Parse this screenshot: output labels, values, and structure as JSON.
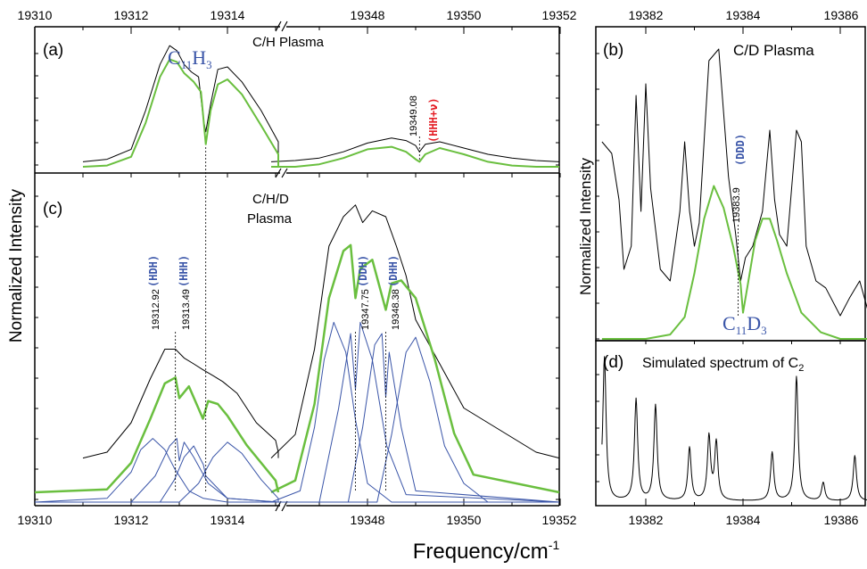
{
  "figure": {
    "xlabel": "Frequency/cm",
    "xlabel_sup": "-1",
    "ylabel_left": "Normalized Intensity",
    "ylabel_right": "Normalized Intensity"
  },
  "panels": {
    "a": {
      "tag": "(a)",
      "title": "C/H Plasma",
      "species": "C",
      "species_sub1": "11",
      "species_mid": "H",
      "species_sub2": "3",
      "line_value": "19349.08",
      "line_label": "(HHH+ν)"
    },
    "b": {
      "tag": "(b)",
      "title": "C/D Plasma",
      "species": "C",
      "species_sub1": "11",
      "species_mid": "D",
      "species_sub2": "3",
      "line_value": "19383.9",
      "line_label": "(DDD)"
    },
    "c": {
      "tag": "(c)",
      "title_line1": "C/H/D",
      "title_line2": "Plasma",
      "lines": [
        {
          "value": "19312.92",
          "label": "(HDH)"
        },
        {
          "value": "19313.49",
          "label": "(HHH)"
        },
        {
          "value": "19347.75",
          "label": "(DDH)"
        },
        {
          "value": "19348.38",
          "label": "(DHH)"
        }
      ]
    },
    "d": {
      "tag": "(d)",
      "title": "Simulated spectrum of C",
      "title_sub": "2"
    }
  },
  "axes": {
    "left_top_ticks_seg1": [
      "19310",
      "19312",
      "19314"
    ],
    "left_top_ticks_seg2": [
      "19348",
      "19350",
      "19352"
    ],
    "left_bottom_ticks_seg1": [
      "19310",
      "19312",
      "19314"
    ],
    "left_bottom_ticks_seg2": [
      "19348",
      "19350",
      "19352"
    ],
    "right_top_ticks": [
      "19382",
      "19384",
      "19386"
    ],
    "right_bottom_ticks": [
      "19382",
      "19384",
      "19386"
    ]
  },
  "chart_data": [
    {
      "panel": "(a)",
      "type": "line",
      "title": "C/H Plasma",
      "xlabel": "Frequency/cm-1",
      "ylabel": "Normalized Intensity",
      "xlim_segments": [
        [
          19310,
          19316
        ],
        [
          19346,
          19352
        ]
      ],
      "series": [
        {
          "name": "C/H Plasma experiment",
          "color": "#000000",
          "stroke_width": 1,
          "x": [
            19311.0,
            19311.5,
            19312.0,
            19312.3,
            19312.6,
            19312.8,
            19312.95,
            19313.1,
            19313.25,
            19313.4,
            19313.5,
            19313.55,
            19313.65,
            19313.8,
            19314.0,
            19314.3,
            19314.7,
            19315.1,
            19315.6,
            19316.0,
            19346.0,
            19346.5,
            19347.0,
            19347.5,
            19348.0,
            19348.5,
            19348.8,
            19349.0,
            19349.08,
            19349.2,
            19349.5,
            19350.0,
            19350.5,
            19351.0,
            19351.5,
            19352.0
          ],
          "y": [
            0.04,
            0.06,
            0.14,
            0.45,
            0.82,
            0.97,
            0.93,
            0.82,
            0.76,
            0.72,
            0.38,
            0.28,
            0.5,
            0.78,
            0.8,
            0.68,
            0.45,
            0.2,
            0.08,
            0.05,
            0.04,
            0.05,
            0.07,
            0.12,
            0.19,
            0.23,
            0.21,
            0.17,
            0.12,
            0.18,
            0.2,
            0.15,
            0.1,
            0.07,
            0.05,
            0.04
          ]
        },
        {
          "name": "C11H3 simulation",
          "color": "#6abf3f",
          "stroke_width": 2,
          "x": [
            19311.0,
            19311.5,
            19312.0,
            19312.3,
            19312.6,
            19312.8,
            19312.95,
            19313.1,
            19313.3,
            19313.45,
            19313.55,
            19313.65,
            19313.8,
            19314.0,
            19314.3,
            19314.7,
            19315.1,
            19315.6,
            19316.0,
            19346.0,
            19346.5,
            19347.0,
            19347.5,
            19348.0,
            19348.5,
            19348.8,
            19349.0,
            19349.08,
            19349.2,
            19349.5,
            19350.0,
            19350.5,
            19351.0,
            19351.5,
            19352.0
          ],
          "y": [
            0.0,
            0.01,
            0.08,
            0.35,
            0.72,
            0.86,
            0.84,
            0.75,
            0.68,
            0.6,
            0.18,
            0.45,
            0.66,
            0.7,
            0.58,
            0.33,
            0.1,
            0.02,
            0.0,
            0.0,
            0.0,
            0.02,
            0.07,
            0.14,
            0.16,
            0.12,
            0.06,
            0.04,
            0.1,
            0.15,
            0.1,
            0.04,
            0.01,
            0.0,
            0.0
          ]
        }
      ]
    },
    {
      "panel": "(b)",
      "type": "line",
      "title": "C/D Plasma",
      "xlabel": "Frequency/cm-1",
      "ylabel": "Normalized Intensity",
      "xlim": [
        19381.1,
        19386.6
      ],
      "series": [
        {
          "name": "C/D Plasma experiment",
          "color": "#000000",
          "stroke_width": 1,
          "x": [
            19381.1,
            19381.3,
            19381.45,
            19381.55,
            19381.7,
            19381.8,
            19381.9,
            19382.0,
            19382.1,
            19382.3,
            19382.5,
            19382.7,
            19382.8,
            19382.9,
            19383.0,
            19383.1,
            19383.3,
            19383.5,
            19383.7,
            19383.85,
            19383.95,
            19384.05,
            19384.2,
            19384.4,
            19384.55,
            19384.65,
            19384.75,
            19384.9,
            19385.0,
            19385.1,
            19385.2,
            19385.3,
            19385.5,
            19385.7,
            19386.0,
            19386.2,
            19386.4,
            19386.6
          ],
          "y": [
            0.85,
            0.8,
            0.6,
            0.3,
            0.4,
            1.05,
            0.55,
            1.1,
            0.65,
            0.3,
            0.25,
            0.55,
            0.85,
            0.55,
            0.4,
            0.5,
            1.2,
            1.25,
            0.7,
            0.45,
            0.25,
            0.35,
            0.4,
            0.55,
            0.9,
            0.6,
            0.45,
            0.4,
            0.65,
            0.9,
            0.85,
            0.4,
            0.25,
            0.22,
            0.1,
            0.18,
            0.25,
            0.1
          ]
        },
        {
          "name": "C11D3 simulation",
          "color": "#6abf3f",
          "stroke_width": 2,
          "x": [
            19381.1,
            19382.0,
            19382.5,
            19382.8,
            19383.0,
            19383.2,
            19383.4,
            19383.6,
            19383.8,
            19383.95,
            19384.0,
            19384.1,
            19384.25,
            19384.4,
            19384.55,
            19384.7,
            19384.9,
            19385.2,
            19385.6,
            19386.0,
            19386.6
          ],
          "y": [
            0.0,
            0.0,
            0.02,
            0.1,
            0.3,
            0.55,
            0.7,
            0.6,
            0.42,
            0.25,
            0.12,
            0.25,
            0.45,
            0.55,
            0.55,
            0.45,
            0.3,
            0.12,
            0.03,
            0.0,
            0.0
          ]
        }
      ]
    },
    {
      "panel": "(c)",
      "type": "line",
      "title": "C/H/D Plasma",
      "xlabel": "Frequency/cm-1",
      "ylabel": "Normalized Intensity",
      "xlim_segments": [
        [
          19310,
          19316
        ],
        [
          19346,
          19352
        ]
      ],
      "series": [
        {
          "name": "C/H/D Plasma experiment",
          "color": "#000000",
          "stroke_width": 1,
          "x": [
            19311.0,
            19311.5,
            19312.0,
            19312.4,
            19312.7,
            19312.92,
            19313.1,
            19313.3,
            19313.49,
            19313.7,
            19313.9,
            19314.2,
            19314.6,
            19315.0,
            19315.5,
            19316.0,
            19346.0,
            19346.5,
            19346.9,
            19347.2,
            19347.5,
            19347.75,
            19347.9,
            19348.1,
            19348.38,
            19348.6,
            19348.8,
            19349.0,
            19349.5,
            19350.0,
            19350.5,
            19351.0,
            19351.5,
            19352.0
          ],
          "y": [
            0.08,
            0.1,
            0.2,
            0.35,
            0.45,
            0.45,
            0.42,
            0.4,
            0.38,
            0.36,
            0.34,
            0.3,
            0.2,
            0.14,
            0.1,
            0.08,
            0.08,
            0.16,
            0.45,
            0.8,
            0.9,
            0.94,
            0.88,
            0.92,
            0.9,
            0.8,
            0.7,
            0.55,
            0.4,
            0.25,
            0.2,
            0.15,
            0.1,
            0.08
          ]
        },
        {
          "name": "Total fit",
          "color": "#6abf3f",
          "stroke_width": 2.5,
          "x": [
            19310.0,
            19311.5,
            19312.0,
            19312.4,
            19312.7,
            19312.92,
            19313.0,
            19313.2,
            19313.49,
            19313.6,
            19313.8,
            19314.0,
            19314.4,
            19315.0,
            19316.0,
            19346.0,
            19346.5,
            19346.9,
            19347.2,
            19347.5,
            19347.65,
            19347.75,
            19347.85,
            19348.1,
            19348.38,
            19348.5,
            19348.7,
            19349.0,
            19349.4,
            19349.8,
            19350.2,
            19352.0
          ],
          "y": [
            0.0,
            0.01,
            0.1,
            0.25,
            0.37,
            0.39,
            0.32,
            0.36,
            0.25,
            0.31,
            0.3,
            0.26,
            0.16,
            0.04,
            0.0,
            0.0,
            0.04,
            0.3,
            0.66,
            0.82,
            0.84,
            0.66,
            0.76,
            0.79,
            0.62,
            0.71,
            0.72,
            0.66,
            0.45,
            0.2,
            0.06,
            0.0
          ]
        },
        {
          "name": "HDH component",
          "color": "#3a55a8",
          "stroke_width": 1,
          "x": [
            19310.0,
            19311.5,
            19312.0,
            19312.2,
            19312.45,
            19312.7,
            19312.9,
            19313.2,
            19313.5,
            19314.0,
            19316.0
          ],
          "y": [
            0.0,
            0.01,
            0.08,
            0.14,
            0.17,
            0.14,
            0.09,
            0.03,
            0.01,
            0.0,
            0.0
          ]
        },
        {
          "name": "HHH component",
          "color": "#3a55a8",
          "stroke_width": 1,
          "x": [
            19310.0,
            19312.0,
            19312.5,
            19312.8,
            19312.95,
            19313.0,
            19313.1,
            19313.3,
            19313.6,
            19314.0,
            19316.0
          ],
          "y": [
            0.0,
            0.0,
            0.07,
            0.15,
            0.17,
            0.11,
            0.16,
            0.12,
            0.05,
            0.01,
            0.0
          ]
        },
        {
          "name": "Component 3",
          "color": "#3a55a8",
          "stroke_width": 1,
          "x": [
            19310.0,
            19312.6,
            19312.9,
            19313.1,
            19313.3,
            19313.5,
            19313.55,
            19313.7,
            19314.0,
            19316.0
          ],
          "y": [
            0.0,
            0.0,
            0.06,
            0.12,
            0.15,
            0.1,
            0.07,
            0.05,
            0.01,
            0.0
          ]
        },
        {
          "name": "Component 4",
          "color": "#3a55a8",
          "stroke_width": 1,
          "x": [
            19310.0,
            19313.0,
            19313.4,
            19313.7,
            19314.0,
            19314.3,
            19314.7,
            19315.2,
            19316.0
          ],
          "y": [
            0.0,
            0.0,
            0.05,
            0.12,
            0.16,
            0.13,
            0.06,
            0.01,
            0.0
          ]
        },
        {
          "name": "DDH component",
          "color": "#3a55a8",
          "stroke_width": 1,
          "x": [
            19346.0,
            19346.6,
            19346.9,
            19347.1,
            19347.3,
            19347.55,
            19347.75,
            19348.0,
            19348.5,
            19352.0
          ],
          "y": [
            0.0,
            0.03,
            0.2,
            0.38,
            0.48,
            0.4,
            0.22,
            0.05,
            0.0,
            0.0
          ]
        },
        {
          "name": "DHH component",
          "color": "#3a55a8",
          "stroke_width": 1,
          "x": [
            19346.0,
            19347.0,
            19347.4,
            19347.65,
            19347.75,
            19347.85,
            19348.1,
            19348.4,
            19348.8,
            19352.0
          ],
          "y": [
            0.0,
            0.0,
            0.25,
            0.45,
            0.3,
            0.48,
            0.38,
            0.15,
            0.02,
            0.0
          ]
        },
        {
          "name": "Component 7",
          "color": "#3a55a8",
          "stroke_width": 1,
          "x": [
            19346.0,
            19347.6,
            19347.9,
            19348.15,
            19348.3,
            19348.38,
            19348.45,
            19348.7,
            19349.0,
            19352.0
          ],
          "y": [
            0.0,
            0.0,
            0.2,
            0.42,
            0.45,
            0.28,
            0.4,
            0.2,
            0.03,
            0.0
          ]
        },
        {
          "name": "Component 8",
          "color": "#3a55a8",
          "stroke_width": 1,
          "x": [
            19346.0,
            19348.2,
            19348.5,
            19348.8,
            19349.0,
            19349.3,
            19349.6,
            19350.0,
            19350.5,
            19352.0
          ],
          "y": [
            0.0,
            0.0,
            0.18,
            0.4,
            0.44,
            0.32,
            0.15,
            0.05,
            0.0,
            0.0
          ]
        }
      ]
    },
    {
      "panel": "(d)",
      "type": "line",
      "title": "Simulated spectrum of C2",
      "xlabel": "Frequency/cm-1",
      "xlim": [
        19381.1,
        19386.6
      ],
      "series": [
        {
          "name": "Simulated C2",
          "color": "#000000",
          "stroke_width": 1,
          "peaks": [
            {
              "x": 19381.15,
              "y": 0.95
            },
            {
              "x": 19381.8,
              "y": 0.67
            },
            {
              "x": 19382.2,
              "y": 0.63
            },
            {
              "x": 19382.9,
              "y": 0.35
            },
            {
              "x": 19383.3,
              "y": 0.42
            },
            {
              "x": 19383.45,
              "y": 0.38
            },
            {
              "x": 19384.6,
              "y": 0.32
            },
            {
              "x": 19385.1,
              "y": 0.82
            },
            {
              "x": 19385.65,
              "y": 0.12
            },
            {
              "x": 19386.3,
              "y": 0.3
            }
          ]
        }
      ]
    }
  ]
}
